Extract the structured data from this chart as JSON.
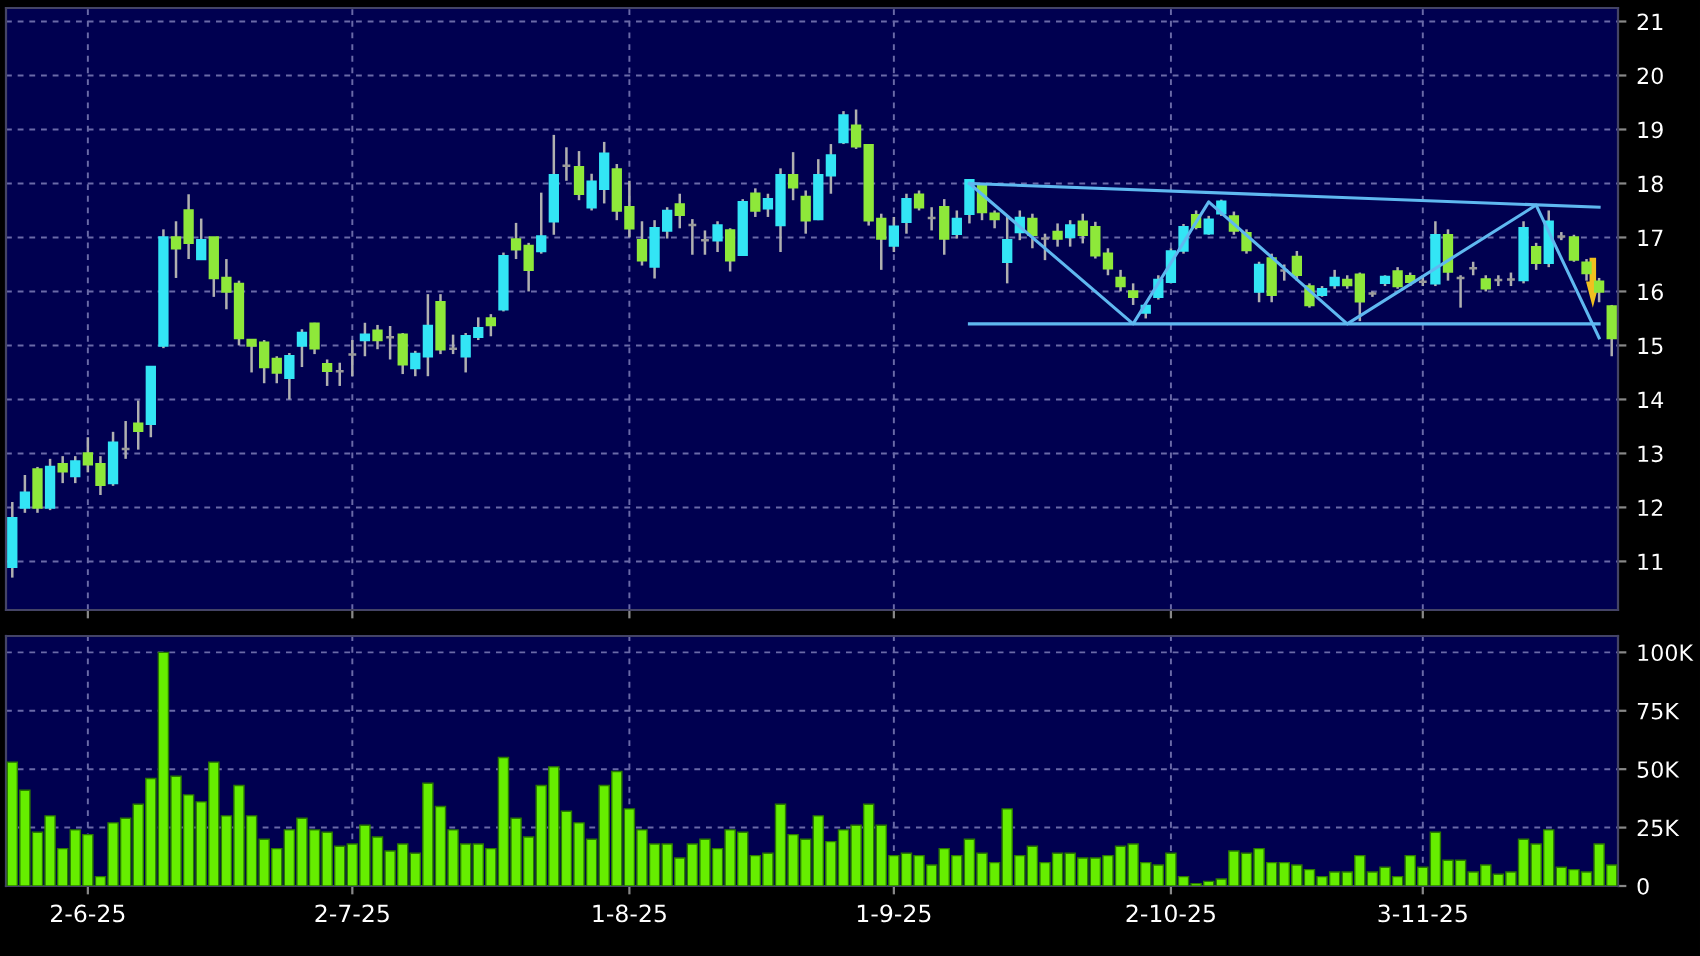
{
  "chart_data": [
    {
      "type": "candlestick",
      "categories": [
        null,
        null,
        null,
        null,
        null,
        null,
        null,
        null,
        null,
        null,
        null,
        null,
        null,
        null,
        null,
        null,
        null,
        null,
        null,
        null,
        null,
        null,
        null,
        null,
        null,
        null,
        null,
        null,
        null,
        null,
        null,
        null,
        null,
        null,
        null,
        null,
        null,
        null,
        null,
        null,
        null,
        null,
        null,
        null,
        null,
        null,
        null,
        null,
        null,
        null,
        null,
        null,
        null,
        null,
        null,
        null,
        null,
        null,
        null,
        null,
        null,
        null,
        null,
        null,
        null,
        null,
        null,
        null,
        null,
        null,
        null,
        null,
        null,
        null,
        null,
        null,
        null,
        null,
        null,
        null,
        null,
        null,
        null,
        null,
        null,
        null,
        null,
        null,
        null,
        null,
        null,
        null,
        null,
        null,
        null,
        null,
        null,
        null,
        null,
        null,
        null,
        null,
        null,
        null,
        null,
        null,
        null,
        null,
        null,
        null,
        null,
        null,
        null,
        null,
        null,
        null,
        null,
        null,
        null,
        null,
        null,
        null,
        null,
        null,
        null,
        null,
        null,
        null
      ],
      "ohlc": [
        [
          10.9,
          12.1,
          10.7,
          11.8
        ],
        [
          12.0,
          12.6,
          11.9,
          12.27
        ],
        [
          12.7,
          12.75,
          11.9,
          12.0
        ],
        [
          12.0,
          12.9,
          11.95,
          12.75
        ],
        [
          12.8,
          12.95,
          12.45,
          12.67
        ],
        [
          12.58,
          12.95,
          12.45,
          12.85
        ],
        [
          13.0,
          13.3,
          12.65,
          12.8
        ],
        [
          12.8,
          12.95,
          12.23,
          12.42
        ],
        [
          12.45,
          13.4,
          12.4,
          13.2
        ],
        [
          13.08,
          13.6,
          12.9,
          13.08
        ],
        [
          13.55,
          13.98,
          13.07,
          13.42
        ],
        [
          13.55,
          14.6,
          13.3,
          14.6
        ],
        [
          15.0,
          17.15,
          14.95,
          17.0
        ],
        [
          17.0,
          17.3,
          16.25,
          16.8
        ],
        [
          17.5,
          17.8,
          16.6,
          16.9
        ],
        [
          16.6,
          17.35,
          16.6,
          16.95
        ],
        [
          17.0,
          17.0,
          15.9,
          16.25
        ],
        [
          16.25,
          16.6,
          15.67,
          16.0
        ],
        [
          16.14,
          16.2,
          15.0,
          15.14
        ],
        [
          15.1,
          15.1,
          14.5,
          15.0
        ],
        [
          15.05,
          15.1,
          14.3,
          14.6
        ],
        [
          14.75,
          14.8,
          14.3,
          14.5
        ],
        [
          14.4,
          14.86,
          14.0,
          14.8
        ],
        [
          15.0,
          15.3,
          14.6,
          15.23
        ],
        [
          15.4,
          15.42,
          14.84,
          14.95
        ],
        [
          14.65,
          14.74,
          14.25,
          14.53
        ],
        [
          14.52,
          14.68,
          14.25,
          14.52
        ],
        [
          14.83,
          15.1,
          14.43,
          14.83
        ],
        [
          15.1,
          15.42,
          14.8,
          15.2
        ],
        [
          15.27,
          15.38,
          14.93,
          15.1
        ],
        [
          15.15,
          15.36,
          14.74,
          15.15
        ],
        [
          15.2,
          15.23,
          14.47,
          14.65
        ],
        [
          14.58,
          14.9,
          14.43,
          14.84
        ],
        [
          14.8,
          15.95,
          14.43,
          15.36
        ],
        [
          15.8,
          15.95,
          14.84,
          14.93
        ],
        [
          14.94,
          15.2,
          14.84,
          14.94
        ],
        [
          14.8,
          15.23,
          14.5,
          15.17
        ],
        [
          15.16,
          15.52,
          15.1,
          15.32
        ],
        [
          15.5,
          15.58,
          15.17,
          15.38
        ],
        [
          15.67,
          16.72,
          15.63,
          16.65
        ],
        [
          16.96,
          17.27,
          16.6,
          16.78
        ],
        [
          16.84,
          16.9,
          16.0,
          16.4
        ],
        [
          16.75,
          17.83,
          16.7,
          17.02
        ],
        [
          17.3,
          18.9,
          17.05,
          18.15
        ],
        [
          18.33,
          18.67,
          18.05,
          18.33
        ],
        [
          18.3,
          18.6,
          17.69,
          17.81
        ],
        [
          17.56,
          18.18,
          17.5,
          18.03
        ],
        [
          17.9,
          18.77,
          17.63,
          18.55
        ],
        [
          18.26,
          18.36,
          17.32,
          17.5
        ],
        [
          17.56,
          18.05,
          17.0,
          17.17
        ],
        [
          16.95,
          17.3,
          16.48,
          16.58
        ],
        [
          16.46,
          17.32,
          16.24,
          17.17
        ],
        [
          17.13,
          17.56,
          16.98,
          17.49
        ],
        [
          17.61,
          17.81,
          17.17,
          17.42
        ],
        [
          17.23,
          17.34,
          16.68,
          17.23
        ],
        [
          16.95,
          17.13,
          16.68,
          16.95
        ],
        [
          16.95,
          17.3,
          16.73,
          17.22
        ],
        [
          17.13,
          17.17,
          16.37,
          16.58
        ],
        [
          16.68,
          17.71,
          16.68,
          17.65
        ],
        [
          17.81,
          17.91,
          17.38,
          17.5
        ],
        [
          17.54,
          17.81,
          17.38,
          17.71
        ],
        [
          17.23,
          18.28,
          16.73,
          18.15
        ],
        [
          18.15,
          18.58,
          17.69,
          17.93
        ],
        [
          17.75,
          17.87,
          17.07,
          17.32
        ],
        [
          17.34,
          18.45,
          17.32,
          18.15
        ],
        [
          18.15,
          18.73,
          17.81,
          18.52
        ],
        [
          18.77,
          19.34,
          18.73,
          19.26
        ],
        [
          19.07,
          19.37,
          18.64,
          18.69
        ],
        [
          18.71,
          18.71,
          17.22,
          17.32
        ],
        [
          17.34,
          17.44,
          16.4,
          16.98
        ],
        [
          16.85,
          17.38,
          16.73,
          17.2
        ],
        [
          17.29,
          17.81,
          17.07,
          17.71
        ],
        [
          17.79,
          17.87,
          17.5,
          17.56
        ],
        [
          17.36,
          17.56,
          17.13,
          17.36
        ],
        [
          17.56,
          17.71,
          16.68,
          16.98
        ],
        [
          17.07,
          17.5,
          16.98,
          17.34
        ],
        [
          17.44,
          18.08,
          17.26,
          18.06
        ],
        [
          17.97,
          18.0,
          17.32,
          17.47
        ],
        [
          17.44,
          17.5,
          17.17,
          17.34
        ],
        [
          16.55,
          17.38,
          16.15,
          16.95
        ],
        [
          17.1,
          17.5,
          16.95,
          17.36
        ],
        [
          17.34,
          17.44,
          16.8,
          17.05
        ],
        [
          16.98,
          17.07,
          16.58,
          16.98
        ],
        [
          17.1,
          17.26,
          16.83,
          16.98
        ],
        [
          17.01,
          17.32,
          16.83,
          17.22
        ],
        [
          17.29,
          17.44,
          16.89,
          17.05
        ],
        [
          17.19,
          17.29,
          16.61,
          16.67
        ],
        [
          16.7,
          16.8,
          16.3,
          16.43
        ],
        [
          16.25,
          16.4,
          16.0,
          16.1
        ],
        [
          16.0,
          16.15,
          15.75,
          15.9
        ],
        [
          15.61,
          15.78,
          15.5,
          15.73
        ],
        [
          15.9,
          16.3,
          15.85,
          16.21
        ],
        [
          16.18,
          16.8,
          16.15,
          16.74
        ],
        [
          16.76,
          17.25,
          16.7,
          17.19
        ],
        [
          17.41,
          17.5,
          17.15,
          17.2
        ],
        [
          17.08,
          17.4,
          17.05,
          17.33
        ],
        [
          17.45,
          17.7,
          17.4,
          17.66
        ],
        [
          17.39,
          17.48,
          17.05,
          17.13
        ],
        [
          17.08,
          17.15,
          16.7,
          16.77
        ],
        [
          16.0,
          16.55,
          15.8,
          16.49
        ],
        [
          16.61,
          16.7,
          15.8,
          15.94
        ],
        [
          16.39,
          16.5,
          16.2,
          16.39
        ],
        [
          16.64,
          16.75,
          16.2,
          16.31
        ],
        [
          16.09,
          16.15,
          15.7,
          15.75
        ],
        [
          15.94,
          16.1,
          15.9,
          16.04
        ],
        [
          16.12,
          16.4,
          16.05,
          16.25
        ],
        [
          16.21,
          16.3,
          16.05,
          16.12
        ],
        [
          16.31,
          16.35,
          15.45,
          15.82
        ],
        [
          15.96,
          16.0,
          15.9,
          15.96
        ],
        [
          16.16,
          16.3,
          16.1,
          16.27
        ],
        [
          16.37,
          16.45,
          16.05,
          16.1
        ],
        [
          16.28,
          16.35,
          16.1,
          16.18
        ],
        [
          16.18,
          16.3,
          16.1,
          16.18
        ],
        [
          16.15,
          17.3,
          16.1,
          17.04
        ],
        [
          17.04,
          17.15,
          16.2,
          16.37
        ],
        [
          16.25,
          16.3,
          15.7,
          16.25
        ],
        [
          16.43,
          16.55,
          16.3,
          16.43
        ],
        [
          16.22,
          16.3,
          16.0,
          16.06
        ],
        [
          16.21,
          16.3,
          16.1,
          16.21
        ],
        [
          16.22,
          16.35,
          16.1,
          16.22
        ],
        [
          16.21,
          17.3,
          16.15,
          17.17
        ],
        [
          16.82,
          16.9,
          16.4,
          16.53
        ],
        [
          16.53,
          17.5,
          16.45,
          17.29
        ],
        [
          17.02,
          17.1,
          16.95,
          17.02
        ],
        [
          17.0,
          17.05,
          16.55,
          16.59
        ],
        [
          16.53,
          16.6,
          16.2,
          16.34
        ],
        [
          16.18,
          16.25,
          15.8,
          16.0
        ],
        [
          15.72,
          15.75,
          14.8,
          15.14
        ]
      ],
      "colors": [
        "#33e5f5",
        "#33e5f5",
        "#8ee83a",
        "#33e5f5",
        "#8ee83a",
        "#33e5f5",
        "#8ee83a",
        "#8ee83a",
        "#33e5f5",
        "#9a9a9a",
        "#8ee83a",
        "#33e5f5",
        "#33e5f5",
        "#8ee83a",
        "#8ee83a",
        "#33e5f5",
        "#8ee83a",
        "#8ee83a",
        "#8ee83a",
        "#8ee83a",
        "#8ee83a",
        "#8ee83a",
        "#33e5f5",
        "#33e5f5",
        "#8ee83a",
        "#8ee83a",
        "#9a9a9a",
        "#9a9a9a",
        "#33e5f5",
        "#8ee83a",
        "#9a9a9a",
        "#8ee83a",
        "#33e5f5",
        "#33e5f5",
        "#8ee83a",
        "#9a9a9a",
        "#33e5f5",
        "#33e5f5",
        "#8ee83a",
        "#33e5f5",
        "#8ee83a",
        "#8ee83a",
        "#33e5f5",
        "#33e5f5",
        "#9a9a9a",
        "#8ee83a",
        "#33e5f5",
        "#33e5f5",
        "#8ee83a",
        "#8ee83a",
        "#8ee83a",
        "#33e5f5",
        "#33e5f5",
        "#8ee83a",
        "#9a9a9a",
        "#9a9a9a",
        "#33e5f5",
        "#8ee83a",
        "#33e5f5",
        "#8ee83a",
        "#33e5f5",
        "#33e5f5",
        "#8ee83a",
        "#8ee83a",
        "#33e5f5",
        "#33e5f5",
        "#33e5f5",
        "#8ee83a",
        "#8ee83a",
        "#8ee83a",
        "#33e5f5",
        "#33e5f5",
        "#8ee83a",
        "#9a9a9a",
        "#8ee83a",
        "#33e5f5",
        "#33e5f5",
        "#8ee83a",
        "#8ee83a",
        "#33e5f5",
        "#33e5f5",
        "#8ee83a",
        "#9a9a9a",
        "#8ee83a",
        "#33e5f5",
        "#8ee83a",
        "#8ee83a",
        "#8ee83a",
        "#8ee83a",
        "#8ee83a",
        "#33e5f5",
        "#33e5f5",
        "#33e5f5",
        "#33e5f5",
        "#8ee83a",
        "#33e5f5",
        "#33e5f5",
        "#8ee83a",
        "#8ee83a",
        "#33e5f5",
        "#8ee83a",
        "#9a9a9a",
        "#8ee83a",
        "#8ee83a",
        "#33e5f5",
        "#33e5f5",
        "#8ee83a",
        "#8ee83a",
        "#9a9a9a",
        "#33e5f5",
        "#8ee83a",
        "#8ee83a",
        "#9a9a9a",
        "#33e5f5",
        "#8ee83a",
        "#9a9a9a",
        "#9a9a9a",
        "#8ee83a",
        "#9a9a9a",
        "#9a9a9a",
        "#33e5f5",
        "#8ee83a",
        "#33e5f5",
        "#9a9a9a",
        "#8ee83a",
        "#8ee83a",
        "#8ee83a",
        "#8ee83a"
      ],
      "series": [
        {
          "type": "line",
          "color": "#5fb8f0",
          "values": [
            null,
            null,
            null,
            null,
            null,
            null,
            null,
            null,
            null,
            null,
            null,
            null,
            null,
            null,
            null,
            null,
            null,
            null,
            null,
            null,
            null,
            null,
            null,
            null,
            null,
            null,
            null,
            null,
            null,
            null,
            null,
            null,
            null,
            null,
            null,
            null,
            null,
            null,
            null,
            null,
            null,
            null,
            null,
            null,
            null,
            null,
            null,
            null,
            null,
            null,
            null,
            null,
            null,
            null,
            null,
            null,
            null,
            null,
            null,
            null,
            null,
            null,
            null,
            null,
            null,
            null,
            null,
            null,
            null,
            null,
            null,
            null,
            null,
            null,
            null,
            null,
            18.0,
            null,
            null,
            null,
            null,
            null,
            null,
            null,
            null,
            null,
            null,
            null,
            null,
            null,
            null,
            null,
            null,
            null,
            null,
            null,
            null,
            null,
            null,
            null,
            null,
            null,
            null,
            null,
            null,
            null,
            null,
            null,
            null,
            null,
            null,
            null,
            null,
            null,
            null,
            null,
            null,
            null,
            null,
            null,
            null,
            null,
            null,
            null,
            null,
            null,
            17.56,
            null
          ]
        },
        {
          "type": "line",
          "color": "#5fb8f0",
          "values": [
            null,
            null,
            null,
            null,
            null,
            null,
            null,
            null,
            null,
            null,
            null,
            null,
            null,
            null,
            null,
            null,
            null,
            null,
            null,
            null,
            null,
            null,
            null,
            null,
            null,
            null,
            null,
            null,
            null,
            null,
            null,
            null,
            null,
            null,
            null,
            null,
            null,
            null,
            null,
            null,
            null,
            null,
            null,
            null,
            null,
            null,
            null,
            null,
            null,
            null,
            null,
            null,
            null,
            null,
            null,
            null,
            null,
            null,
            null,
            null,
            null,
            null,
            null,
            null,
            null,
            null,
            null,
            null,
            null,
            null,
            null,
            null,
            null,
            null,
            null,
            null,
            15.4,
            null,
            null,
            null,
            null,
            null,
            null,
            null,
            null,
            null,
            null,
            null,
            null,
            null,
            null,
            null,
            null,
            null,
            null,
            null,
            null,
            null,
            null,
            null,
            null,
            null,
            null,
            null,
            null,
            null,
            null,
            null,
            null,
            null,
            null,
            null,
            null,
            null,
            null,
            null,
            null,
            null,
            null,
            null,
            null,
            null,
            null,
            null,
            null,
            null,
            15.4,
            null
          ]
        },
        {
          "type": "line",
          "color": "#5fb8f0",
          "values": [
            null,
            null,
            null,
            null,
            null,
            null,
            null,
            null,
            null,
            null,
            null,
            null,
            null,
            null,
            null,
            null,
            null,
            null,
            null,
            null,
            null,
            null,
            null,
            null,
            null,
            null,
            null,
            null,
            null,
            null,
            null,
            null,
            null,
            null,
            null,
            null,
            null,
            null,
            null,
            null,
            null,
            null,
            null,
            null,
            null,
            null,
            null,
            null,
            null,
            null,
            null,
            null,
            null,
            null,
            null,
            null,
            null,
            null,
            null,
            null,
            null,
            null,
            null,
            null,
            null,
            null,
            null,
            null,
            null,
            null,
            null,
            null,
            null,
            null,
            null,
            null,
            18.0,
            null,
            null,
            null,
            null,
            null,
            null,
            null,
            null,
            null,
            null,
            null,
            null,
            15.4,
            null,
            null,
            null,
            null,
            null,
            17.66,
            null,
            null,
            null,
            null,
            null,
            null,
            null,
            null,
            null,
            null,
            15.4,
            null,
            null,
            null,
            null,
            null,
            null,
            null,
            null,
            null,
            null,
            null,
            null,
            null,
            null,
            17.6,
            null,
            null,
            null,
            null,
            15.14,
            null
          ]
        }
      ],
      "ylim": [
        10.1,
        21.25
      ],
      "yticks": [
        11,
        12,
        13,
        14,
        15,
        16,
        17,
        18,
        19,
        20,
        21
      ],
      "grid": true,
      "tick_labels": "y"
    },
    {
      "type": "bar",
      "categories": [
        null,
        null,
        null,
        null,
        null,
        null,
        "2-6-25",
        null,
        null,
        null,
        null,
        null,
        null,
        null,
        null,
        null,
        null,
        null,
        null,
        null,
        null,
        null,
        null,
        null,
        null,
        null,
        null,
        "2-7-25",
        null,
        null,
        null,
        null,
        null,
        null,
        null,
        null,
        null,
        null,
        null,
        null,
        null,
        null,
        null,
        null,
        null,
        null,
        null,
        null,
        null,
        "1-8-25",
        null,
        null,
        null,
        null,
        null,
        null,
        null,
        null,
        null,
        null,
        null,
        null,
        null,
        null,
        null,
        null,
        null,
        null,
        null,
        null,
        "1-9-25",
        null,
        null,
        null,
        null,
        null,
        null,
        null,
        null,
        null,
        null,
        null,
        null,
        null,
        null,
        null,
        null,
        null,
        null,
        null,
        null,
        null,
        "2-10-25",
        null,
        null,
        null,
        null,
        null,
        null,
        null,
        null,
        null,
        null,
        null,
        null,
        null,
        null,
        null,
        null,
        null,
        null,
        null,
        "3-11-25",
        null,
        null,
        null,
        null,
        null,
        null,
        null,
        null,
        null,
        null,
        null,
        null,
        null,
        null,
        null
      ],
      "values": [
        53,
        41,
        23,
        30,
        16,
        24,
        22,
        4,
        27,
        29,
        35,
        46,
        100,
        47,
        39,
        36,
        53,
        30,
        43,
        30,
        20,
        16,
        24,
        29,
        24,
        23,
        17,
        18,
        26,
        21,
        15,
        18,
        14,
        44,
        34,
        24,
        18,
        18,
        16,
        55,
        29,
        21,
        43,
        51,
        32,
        27,
        20,
        43,
        49,
        33,
        24,
        18,
        18,
        12,
        18,
        20,
        16,
        24,
        23,
        13,
        14,
        35,
        22,
        20,
        30,
        19,
        24,
        26,
        35,
        26,
        13,
        14,
        13,
        9,
        16,
        13,
        20,
        14,
        10,
        33,
        13,
        17,
        10,
        14,
        14,
        12,
        12,
        13,
        17,
        18,
        10,
        9,
        14,
        4,
        1,
        2,
        3,
        15,
        14,
        16,
        10,
        10,
        9,
        7,
        4,
        6,
        6,
        13,
        6,
        8,
        4,
        13,
        8,
        23,
        11,
        11,
        6,
        9,
        5,
        6,
        20,
        18,
        24,
        8,
        7,
        6,
        18,
        9
      ],
      "color": "#66ee00",
      "ylim": [
        0,
        107
      ],
      "yticks": [
        0,
        {
          "value": 25,
          "label": "25K"
        },
        {
          "value": 50,
          "label": "50K"
        },
        {
          "value": 75,
          "label": "75K"
        },
        {
          "value": 100,
          "label": "100K"
        }
      ],
      "grid": true
    }
  ]
}
